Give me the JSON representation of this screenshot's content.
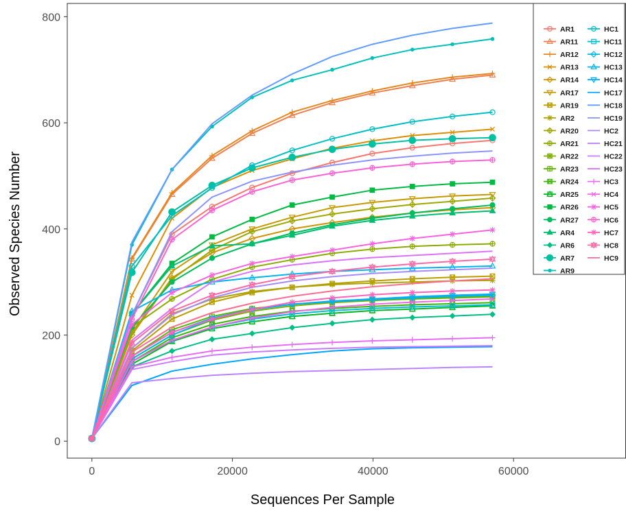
{
  "chart_data": {
    "type": "line",
    "title": "",
    "xlabel": "Sequences Per Sample",
    "ylabel": "Observed Species Number",
    "xlim": [
      -3500,
      76000
    ],
    "ylim": [
      -32,
      825
    ],
    "x_ticks": [
      0,
      20000,
      40000,
      60000
    ],
    "y_ticks": [
      0,
      200,
      400,
      600,
      800
    ],
    "x_tick_labels": [
      "0",
      "20000",
      "40000",
      "60000"
    ],
    "y_tick_labels": [
      "0",
      "200",
      "400",
      "600",
      "800"
    ],
    "grid": false,
    "legend_position": "top-right",
    "x": [
      0,
      5700,
      11400,
      17100,
      22800,
      28500,
      34200,
      39900,
      45600,
      51300,
      57000
    ],
    "series": [
      {
        "name": "AR1",
        "color": "#F8766D",
        "marker": "circle-open",
        "values": [
          5,
          238,
          390,
          442,
          478,
          505,
          525,
          542,
          553,
          561,
          567
        ]
      },
      {
        "name": "AR11",
        "color": "#F07F4F",
        "marker": "triangle-open",
        "values": [
          5,
          343,
          465,
          533,
          580,
          614,
          638,
          656,
          670,
          682,
          690
        ]
      },
      {
        "name": "AR12",
        "color": "#E7861B",
        "marker": "plus",
        "values": [
          5,
          345,
          468,
          538,
          585,
          620,
          642,
          660,
          675,
          686,
          693
        ]
      },
      {
        "name": "AR13",
        "color": "#DB8E00",
        "marker": "cross",
        "values": [
          5,
          275,
          420,
          478,
          510,
          532,
          552,
          566,
          576,
          582,
          588
        ]
      },
      {
        "name": "AR14",
        "color": "#CF9400",
        "marker": "diamond-open",
        "values": [
          5,
          200,
          308,
          355,
          382,
          400,
          412,
          422,
          430,
          436,
          440
        ]
      },
      {
        "name": "AR17",
        "color": "#C49A00",
        "marker": "triangle-down-open",
        "values": [
          5,
          210,
          320,
          370,
          400,
          422,
          440,
          450,
          457,
          462,
          465
        ]
      },
      {
        "name": "AR19",
        "color": "#BB9D00",
        "marker": "square-cross",
        "values": [
          5,
          170,
          230,
          262,
          280,
          290,
          297,
          302,
          306,
          309,
          311
        ]
      },
      {
        "name": "AR2",
        "color": "#ADA200",
        "marker": "asterisk",
        "values": [
          5,
          175,
          240,
          268,
          282,
          290,
          295,
          298,
          300,
          302,
          303
        ]
      },
      {
        "name": "AR20",
        "color": "#9DA700",
        "marker": "diamond-plus",
        "values": [
          5,
          205,
          305,
          360,
          395,
          415,
          428,
          438,
          446,
          452,
          458
        ]
      },
      {
        "name": "AR21",
        "color": "#8CAB00",
        "marker": "circle-plus",
        "values": [
          5,
          215,
          268,
          305,
          328,
          342,
          354,
          362,
          367,
          370,
          372
        ]
      },
      {
        "name": "AR22",
        "color": "#7CAE00",
        "marker": "star-square",
        "values": [
          5,
          155,
          200,
          228,
          245,
          255,
          261,
          265,
          268,
          271,
          273
        ]
      },
      {
        "name": "AR23",
        "color": "#5EB300",
        "marker": "square-plus",
        "values": [
          5,
          160,
          210,
          235,
          250,
          258,
          263,
          266,
          268,
          270,
          272
        ]
      },
      {
        "name": "AR24",
        "color": "#39B600",
        "marker": "square-cross",
        "values": [
          5,
          150,
          195,
          220,
          235,
          245,
          250,
          254,
          257,
          259,
          261
        ]
      },
      {
        "name": "AR25",
        "color": "#00B81F",
        "marker": "triangle-square",
        "values": [
          5,
          145,
          188,
          212,
          225,
          235,
          241,
          246,
          249,
          252,
          255
        ]
      },
      {
        "name": "AR26",
        "color": "#00BA42",
        "marker": "square",
        "values": [
          5,
          240,
          335,
          385,
          418,
          445,
          460,
          473,
          480,
          485,
          488
        ]
      },
      {
        "name": "AR27",
        "color": "#00BC5B",
        "marker": "circle",
        "values": [
          5,
          215,
          300,
          345,
          372,
          392,
          408,
          420,
          430,
          438,
          445
        ]
      },
      {
        "name": "AR4",
        "color": "#00BE71",
        "marker": "triangle",
        "values": [
          5,
          240,
          330,
          368,
          372,
          388,
          405,
          416,
          424,
          430,
          434
        ]
      },
      {
        "name": "AR6",
        "color": "#00BF84",
        "marker": "diamond",
        "values": [
          5,
          140,
          170,
          192,
          203,
          214,
          222,
          229,
          233,
          236,
          239
        ]
      },
      {
        "name": "AR7",
        "color": "#00C0A2",
        "marker": "circle-large",
        "values": [
          5,
          318,
          432,
          482,
          515,
          535,
          550,
          560,
          567,
          570,
          572
        ]
      },
      {
        "name": "AR9",
        "color": "#00C0B8",
        "marker": "dot",
        "values": [
          5,
          370,
          512,
          593,
          648,
          680,
          700,
          722,
          738,
          748,
          758
        ]
      },
      {
        "name": "HC1",
        "color": "#00BFC4",
        "marker": "circle-open",
        "values": [
          5,
          330,
          425,
          477,
          520,
          548,
          570,
          588,
          602,
          612,
          620
        ]
      },
      {
        "name": "HC11",
        "color": "#00BBDA",
        "marker": "square-open",
        "values": [
          5,
          150,
          190,
          215,
          230,
          240,
          246,
          250,
          253,
          255,
          257
        ]
      },
      {
        "name": "HC12",
        "color": "#00B8E5",
        "marker": "diamond-open",
        "values": [
          5,
          155,
          200,
          230,
          248,
          258,
          263,
          267,
          270,
          273,
          275
        ]
      },
      {
        "name": "HC13",
        "color": "#00B4F0",
        "marker": "triangle-open",
        "values": [
          5,
          245,
          285,
          300,
          308,
          315,
          320,
          323,
          326,
          328,
          330
        ]
      },
      {
        "name": "HC14",
        "color": "#00ADFA",
        "marker": "triangle-down-open",
        "values": [
          5,
          160,
          205,
          232,
          248,
          258,
          264,
          268,
          272,
          275,
          277
        ]
      },
      {
        "name": "HC17",
        "color": "#00A5FF",
        "marker": "none",
        "values": [
          5,
          105,
          132,
          145,
          155,
          163,
          170,
          174,
          176,
          177,
          178
        ]
      },
      {
        "name": "HC18",
        "color": "#619CFF",
        "marker": "none",
        "values": [
          5,
          375,
          512,
          598,
          652,
          692,
          725,
          748,
          765,
          778,
          788
        ]
      },
      {
        "name": "HC19",
        "color": "#8B93FF",
        "marker": "none",
        "values": [
          5,
          238,
          395,
          460,
          490,
          507,
          520,
          530,
          537,
          543,
          547
        ]
      },
      {
        "name": "HC2",
        "color": "#A58AFF",
        "marker": "none",
        "values": [
          5,
          175,
          238,
          270,
          290,
          302,
          310,
          316,
          320,
          323,
          326
        ]
      },
      {
        "name": "HC21",
        "color": "#BB83FF",
        "marker": "none",
        "values": [
          5,
          110,
          118,
          124,
          128,
          131,
          133,
          135,
          137,
          139,
          140
        ]
      },
      {
        "name": "HC22",
        "color": "#CB7AFF",
        "marker": "none",
        "values": [
          5,
          135,
          150,
          162,
          168,
          172,
          175,
          177,
          178,
          179,
          180
        ]
      },
      {
        "name": "HC23",
        "color": "#DB72FB",
        "marker": "none",
        "values": [
          5,
          190,
          250,
          300,
          320,
          332,
          340,
          346,
          350,
          354,
          358
        ]
      },
      {
        "name": "HC3",
        "color": "#E76BF3",
        "marker": "plus",
        "values": [
          5,
          140,
          158,
          170,
          177,
          182,
          186,
          189,
          191,
          193,
          195
        ]
      },
      {
        "name": "HC4",
        "color": "#F066E8",
        "marker": "cross",
        "values": [
          5,
          150,
          190,
          215,
          232,
          244,
          252,
          258,
          262,
          265,
          268
        ]
      },
      {
        "name": "HC5",
        "color": "#F763E0",
        "marker": "asterisk",
        "values": [
          5,
          220,
          280,
          313,
          335,
          348,
          360,
          372,
          382,
          390,
          398
        ]
      },
      {
        "name": "HC6",
        "color": "#FC61D5",
        "marker": "circle-plus",
        "values": [
          5,
          230,
          380,
          435,
          470,
          492,
          505,
          515,
          522,
          527,
          530
        ]
      },
      {
        "name": "HC7",
        "color": "#FF62BC",
        "marker": "star",
        "values": [
          5,
          160,
          205,
          230,
          248,
          262,
          270,
          276,
          280,
          283,
          285
        ]
      },
      {
        "name": "HC8",
        "color": "#FF67A4",
        "marker": "star-triangle",
        "values": [
          5,
          185,
          245,
          275,
          295,
          310,
          320,
          328,
          334,
          339,
          343
        ]
      },
      {
        "name": "HC9",
        "color": "#FF6C91",
        "marker": "none",
        "values": [
          5,
          168,
          215,
          242,
          260,
          273,
          283,
          291,
          297,
          302,
          306
        ]
      }
    ]
  }
}
